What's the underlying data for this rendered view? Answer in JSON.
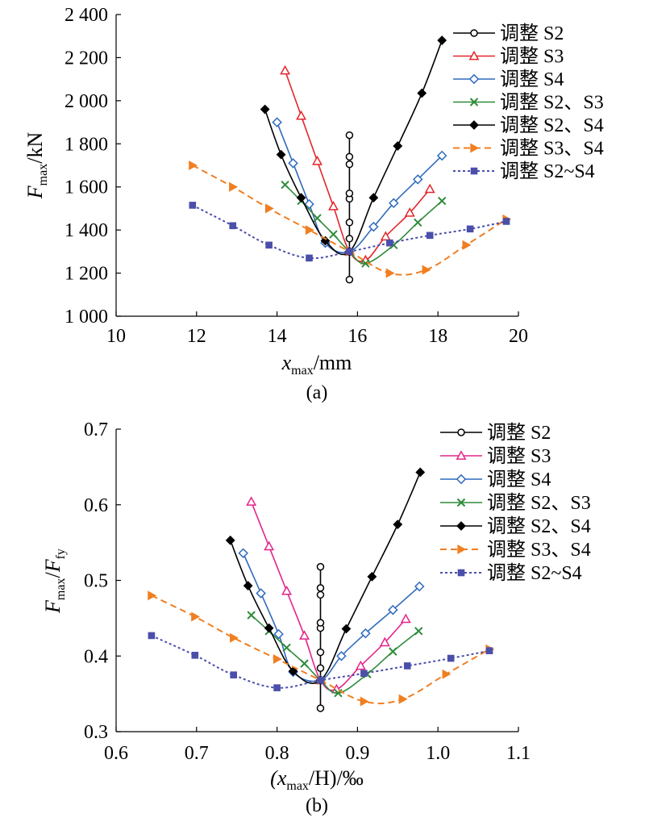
{
  "chart_data": [
    {
      "type": "line",
      "panel_label": "(a)",
      "xlabel": {
        "main": "x",
        "sub": "max",
        "rest": "/mm"
      },
      "ylabel": {
        "main": "F",
        "sub": "max",
        "rest": "/kN"
      },
      "xlim": [
        10,
        20
      ],
      "ylim": [
        1000,
        2400
      ],
      "xticks": [
        10,
        12,
        14,
        16,
        18,
        20
      ],
      "yticks": [
        1000,
        1200,
        1400,
        1600,
        1800,
        2000,
        2200,
        2400
      ],
      "xtick_labels": [
        "10",
        "12",
        "14",
        "16",
        "18",
        "20"
      ],
      "ytick_labels": [
        "1 000",
        "1 200",
        "1 400",
        "1 600",
        "1 800",
        "2 000",
        "2 200",
        "2 400"
      ],
      "legend_position": "top-right",
      "series": [
        {
          "name": "调整 S2",
          "color": "#000000",
          "marker": "circle-open",
          "dash": "solid",
          "points": [
            [
              15.8,
              1170
            ],
            [
              15.8,
              1300
            ],
            [
              15.8,
              1360
            ],
            [
              15.8,
              1435
            ],
            [
              15.8,
              1545
            ],
            [
              15.8,
              1570
            ],
            [
              15.8,
              1705
            ],
            [
              15.8,
              1740
            ],
            [
              15.8,
              1840
            ]
          ]
        },
        {
          "name": "调整 S3",
          "color": "#e3262b",
          "marker": "triangle-open",
          "dash": "solid",
          "points": [
            [
              14.2,
              2140
            ],
            [
              14.6,
              1930
            ],
            [
              15.0,
              1720
            ],
            [
              15.4,
              1510
            ],
            [
              15.8,
              1300
            ],
            [
              16.2,
              1260
            ],
            [
              16.7,
              1370
            ],
            [
              17.3,
              1480
            ],
            [
              17.8,
              1590
            ]
          ]
        },
        {
          "name": "调整 S4",
          "color": "#2f6bbd",
          "marker": "diamond-open",
          "dash": "solid",
          "points": [
            [
              14.0,
              1900
            ],
            [
              14.4,
              1710
            ],
            [
              14.8,
              1520
            ],
            [
              15.2,
              1340
            ],
            [
              15.8,
              1300
            ],
            [
              16.4,
              1415
            ],
            [
              16.9,
              1525
            ],
            [
              17.5,
              1635
            ],
            [
              18.1,
              1745
            ]
          ]
        },
        {
          "name": "调整 S2、S3",
          "color": "#2e8b3a",
          "marker": "x",
          "dash": "solid",
          "points": [
            [
              14.2,
              1610
            ],
            [
              14.6,
              1535
            ],
            [
              15.0,
              1455
            ],
            [
              15.4,
              1380
            ],
            [
              15.8,
              1300
            ],
            [
              16.2,
              1245
            ],
            [
              16.9,
              1330
            ],
            [
              17.5,
              1435
            ],
            [
              18.1,
              1535
            ]
          ]
        },
        {
          "name": "调整 S2、S4",
          "color": "#000000",
          "marker": "diamond-filled",
          "dash": "solid",
          "points": [
            [
              13.7,
              1960
            ],
            [
              14.1,
              1750
            ],
            [
              14.6,
              1550
            ],
            [
              15.2,
              1350
            ],
            [
              15.8,
              1300
            ],
            [
              16.4,
              1550
            ],
            [
              17.0,
              1790
            ],
            [
              17.6,
              2035
            ],
            [
              18.1,
              2280
            ]
          ]
        },
        {
          "name": "调整 S3、S4",
          "color": "#f07f22",
          "marker": "triangle-right-filled",
          "dash": "dashed",
          "points": [
            [
              11.9,
              1700
            ],
            [
              12.9,
              1600
            ],
            [
              13.8,
              1500
            ],
            [
              14.8,
              1400
            ],
            [
              15.8,
              1300
            ],
            [
              16.8,
              1200
            ],
            [
              17.7,
              1215
            ],
            [
              18.7,
              1330
            ],
            [
              19.7,
              1450
            ]
          ]
        },
        {
          "name": "调整 S2~S4",
          "color": "#4b4faa",
          "marker": "square-filled",
          "dash": "dotted",
          "points": [
            [
              11.9,
              1515
            ],
            [
              12.9,
              1420
            ],
            [
              13.8,
              1330
            ],
            [
              14.8,
              1270
            ],
            [
              15.8,
              1300
            ],
            [
              16.8,
              1340
            ],
            [
              17.8,
              1375
            ],
            [
              18.8,
              1405
            ],
            [
              19.7,
              1440
            ]
          ]
        }
      ]
    },
    {
      "type": "line",
      "panel_label": "(b)",
      "xlabel": {
        "main": "(x",
        "sub": "max",
        "rest": "/H)/‰"
      },
      "ylabel": {
        "main": "F",
        "sub": "max",
        "rest": "/F",
        "sub2": "fy"
      },
      "xlim": [
        0.6,
        1.1
      ],
      "ylim": [
        0.3,
        0.7
      ],
      "xticks": [
        0.6,
        0.7,
        0.8,
        0.9,
        1.0,
        1.1
      ],
      "yticks": [
        0.3,
        0.4,
        0.5,
        0.6,
        0.7
      ],
      "xtick_labels": [
        "0.6",
        "0.7",
        "0.8",
        "0.9",
        "1.0",
        "1.1"
      ],
      "ytick_labels": [
        "0.3",
        "0.4",
        "0.5",
        "0.6",
        "0.7"
      ],
      "legend_position": "top-right",
      "series": [
        {
          "name": "调整 S2",
          "color": "#000000",
          "marker": "circle-open",
          "dash": "solid",
          "points": [
            [
              0.854,
              0.331
            ],
            [
              0.854,
              0.368
            ],
            [
              0.854,
              0.384
            ],
            [
              0.854,
              0.405
            ],
            [
              0.854,
              0.437
            ],
            [
              0.854,
              0.444
            ],
            [
              0.854,
              0.481
            ],
            [
              0.854,
              0.49
            ],
            [
              0.854,
              0.518
            ]
          ]
        },
        {
          "name": "调整 S3",
          "color": "#e4248a",
          "marker": "triangle-open",
          "dash": "solid",
          "points": [
            [
              0.768,
              0.604
            ],
            [
              0.79,
              0.545
            ],
            [
              0.812,
              0.486
            ],
            [
              0.834,
              0.427
            ],
            [
              0.854,
              0.368
            ],
            [
              0.874,
              0.356
            ],
            [
              0.904,
              0.387
            ],
            [
              0.934,
              0.418
            ],
            [
              0.96,
              0.449
            ]
          ]
        },
        {
          "name": "调整 S4",
          "color": "#2f6bbd",
          "marker": "diamond-open",
          "dash": "solid",
          "points": [
            [
              0.758,
              0.536
            ],
            [
              0.78,
              0.483
            ],
            [
              0.802,
              0.429
            ],
            [
              0.82,
              0.379
            ],
            [
              0.854,
              0.368
            ],
            [
              0.88,
              0.4
            ],
            [
              0.91,
              0.43
            ],
            [
              0.944,
              0.461
            ],
            [
              0.977,
              0.492
            ]
          ]
        },
        {
          "name": "调整 S2、S3",
          "color": "#2e8b3a",
          "marker": "x",
          "dash": "solid",
          "points": [
            [
              0.768,
              0.454
            ],
            [
              0.79,
              0.433
            ],
            [
              0.812,
              0.411
            ],
            [
              0.834,
              0.39
            ],
            [
              0.854,
              0.368
            ],
            [
              0.876,
              0.351
            ],
            [
              0.912,
              0.376
            ],
            [
              0.944,
              0.406
            ],
            [
              0.976,
              0.433
            ]
          ]
        },
        {
          "name": "调整 S2、S4",
          "color": "#000000",
          "marker": "diamond-filled",
          "dash": "solid",
          "points": [
            [
              0.742,
              0.553
            ],
            [
              0.764,
              0.493
            ],
            [
              0.79,
              0.437
            ],
            [
              0.82,
              0.38
            ],
            [
              0.854,
              0.368
            ],
            [
              0.886,
              0.436
            ],
            [
              0.918,
              0.505
            ],
            [
              0.95,
              0.574
            ],
            [
              0.978,
              0.643
            ]
          ]
        },
        {
          "name": "调整 S3、S4",
          "color": "#f07f22",
          "marker": "triangle-right-filled",
          "dash": "dashed",
          "points": [
            [
              0.644,
              0.48
            ],
            [
              0.698,
              0.452
            ],
            [
              0.746,
              0.424
            ],
            [
              0.8,
              0.396
            ],
            [
              0.854,
              0.368
            ],
            [
              0.908,
              0.34
            ],
            [
              0.956,
              0.343
            ],
            [
              1.01,
              0.376
            ],
            [
              1.064,
              0.409
            ]
          ]
        },
        {
          "name": "调整 S2~S4",
          "color": "#4b4faa",
          "marker": "square-filled",
          "dash": "dotted",
          "points": [
            [
              0.644,
              0.427
            ],
            [
              0.698,
              0.401
            ],
            [
              0.746,
              0.375
            ],
            [
              0.8,
              0.358
            ],
            [
              0.854,
              0.368
            ],
            [
              0.908,
              0.377
            ],
            [
              0.962,
              0.387
            ],
            [
              1.016,
              0.397
            ],
            [
              1.064,
              0.407
            ]
          ]
        }
      ]
    }
  ]
}
